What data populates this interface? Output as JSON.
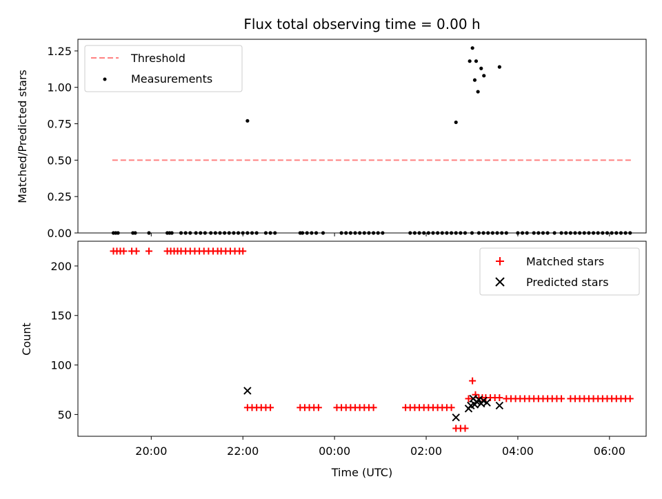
{
  "chart_data": [
    {
      "type": "scatter",
      "panel": "top",
      "title": "Flux total observing time = 0.00 h",
      "ylabel": "Matched/Predicted stars",
      "ylim": [
        0.0,
        1.33
      ],
      "xlim": [
        -3.2,
        21.6
      ],
      "yticks": [
        0.0,
        0.25,
        0.5,
        0.75,
        1.0,
        1.25
      ],
      "ytick_labels": [
        "0.00",
        "0.25",
        "0.50",
        "0.75",
        "1.00",
        "1.25"
      ],
      "xticks": [
        0,
        4,
        8,
        12,
        16,
        20
      ],
      "legend_position": "top-left",
      "threshold": {
        "name": "Threshold",
        "color": "#ff8080",
        "y": 0.5,
        "x": [
          -1.7,
          20.95
        ]
      },
      "measurements": {
        "name": "Measurements",
        "color": "#000000",
        "x": [
          -1.65,
          -1.55,
          -1.45,
          -0.8,
          -0.7,
          -0.1,
          0.7,
          0.8,
          0.9,
          1.3,
          1.5,
          1.7,
          1.95,
          2.15,
          2.35,
          2.6,
          2.8,
          3.0,
          3.2,
          3.4,
          3.6,
          3.8,
          4.0,
          4.2,
          4.4,
          4.6,
          5.0,
          5.2,
          5.4,
          6.5,
          6.6,
          6.8,
          7.0,
          7.2,
          7.5,
          8.3,
          8.5,
          8.7,
          8.9,
          9.1,
          9.3,
          9.5,
          9.7,
          9.9,
          10.1,
          11.3,
          11.5,
          11.7,
          11.9,
          12.1,
          12.3,
          12.5,
          12.7,
          12.9,
          13.1,
          13.3,
          13.5,
          13.7,
          14.0,
          14.3,
          14.5,
          14.7,
          14.9,
          15.1,
          15.3,
          15.5,
          16.0,
          16.2,
          16.4,
          16.7,
          16.9,
          17.1,
          17.3,
          17.6,
          17.9,
          18.1,
          18.3,
          18.5,
          18.7,
          18.9,
          19.1,
          19.3,
          19.5,
          19.7,
          19.9,
          20.1,
          20.3,
          20.5,
          20.7,
          20.9,
          4.2,
          13.3,
          13.9,
          14.12,
          14.02,
          14.18,
          14.26,
          14.4,
          14.52,
          15.2
        ],
        "y": [
          0,
          0,
          0,
          0,
          0,
          0,
          0,
          0,
          0,
          0,
          0,
          0,
          0,
          0,
          0,
          0,
          0,
          0,
          0,
          0,
          0,
          0,
          0,
          0,
          0,
          0,
          0,
          0,
          0,
          0,
          0,
          0,
          0,
          0,
          0,
          0,
          0,
          0,
          0,
          0,
          0,
          0,
          0,
          0,
          0,
          0,
          0,
          0,
          0,
          0,
          0,
          0,
          0,
          0,
          0,
          0,
          0,
          0,
          0,
          0,
          0,
          0,
          0,
          0,
          0,
          0,
          0,
          0,
          0,
          0,
          0,
          0,
          0,
          0,
          0,
          0,
          0,
          0,
          0,
          0,
          0,
          0,
          0,
          0,
          0,
          0,
          0,
          0,
          0,
          0,
          0.77,
          0.76,
          1.18,
          1.05,
          1.27,
          1.18,
          0.97,
          1.13,
          1.08,
          1.14
        ]
      }
    },
    {
      "type": "scatter",
      "panel": "bottom",
      "xlabel": "Time (UTC)",
      "ylabel": "Count",
      "ylim": [
        28,
        225
      ],
      "xlim": [
        -3.2,
        21.6
      ],
      "yticks": [
        50,
        100,
        150,
        200
      ],
      "ytick_labels": [
        "50",
        "100",
        "150",
        "200"
      ],
      "xticks": [
        0,
        4,
        8,
        12,
        16,
        20
      ],
      "xtick_labels": [
        "20:00",
        "22:00",
        "00:00",
        "02:00",
        "04:00",
        "06:00"
      ],
      "legend_position": "top-right",
      "matched": {
        "name": "Matched stars",
        "color": "#ff0000",
        "points": [
          [
            -1.65,
            215
          ],
          [
            -1.5,
            215
          ],
          [
            -1.35,
            215
          ],
          [
            -1.2,
            215
          ],
          [
            -0.85,
            215
          ],
          [
            -0.65,
            215
          ],
          [
            -0.1,
            215
          ],
          [
            0.7,
            215
          ],
          [
            0.85,
            215
          ],
          [
            1.0,
            215
          ],
          [
            1.15,
            215
          ],
          [
            1.3,
            215
          ],
          [
            1.5,
            215
          ],
          [
            1.7,
            215
          ],
          [
            1.9,
            215
          ],
          [
            2.1,
            215
          ],
          [
            2.3,
            215
          ],
          [
            2.5,
            215
          ],
          [
            2.7,
            215
          ],
          [
            2.9,
            215
          ],
          [
            3.05,
            215
          ],
          [
            3.25,
            215
          ],
          [
            3.45,
            215
          ],
          [
            3.65,
            215
          ],
          [
            3.85,
            215
          ],
          [
            4.0,
            215
          ],
          [
            4.2,
            57
          ],
          [
            4.4,
            57
          ],
          [
            4.6,
            57
          ],
          [
            4.8,
            57
          ],
          [
            5.0,
            57
          ],
          [
            5.2,
            57
          ],
          [
            6.5,
            57
          ],
          [
            6.7,
            57
          ],
          [
            6.9,
            57
          ],
          [
            7.1,
            57
          ],
          [
            7.3,
            57
          ],
          [
            8.1,
            57
          ],
          [
            8.3,
            57
          ],
          [
            8.5,
            57
          ],
          [
            8.7,
            57
          ],
          [
            8.9,
            57
          ],
          [
            9.1,
            57
          ],
          [
            9.3,
            57
          ],
          [
            9.5,
            57
          ],
          [
            9.7,
            57
          ],
          [
            11.1,
            57
          ],
          [
            11.3,
            57
          ],
          [
            11.5,
            57
          ],
          [
            11.7,
            57
          ],
          [
            11.9,
            57
          ],
          [
            12.1,
            57
          ],
          [
            12.3,
            57
          ],
          [
            12.5,
            57
          ],
          [
            12.7,
            57
          ],
          [
            12.9,
            57
          ],
          [
            13.1,
            57
          ],
          [
            13.3,
            36
          ],
          [
            13.5,
            36
          ],
          [
            13.7,
            36
          ],
          [
            13.85,
            66
          ],
          [
            14.02,
            84
          ],
          [
            14.15,
            70
          ],
          [
            14.3,
            67
          ],
          [
            14.45,
            67
          ],
          [
            14.6,
            67
          ],
          [
            14.8,
            67
          ],
          [
            15.0,
            67
          ],
          [
            15.2,
            67
          ],
          [
            15.5,
            66
          ],
          [
            15.7,
            66
          ],
          [
            15.9,
            66
          ],
          [
            16.1,
            66
          ],
          [
            16.3,
            66
          ],
          [
            16.5,
            66
          ],
          [
            16.7,
            66
          ],
          [
            16.9,
            66
          ],
          [
            17.1,
            66
          ],
          [
            17.3,
            66
          ],
          [
            17.5,
            66
          ],
          [
            17.7,
            66
          ],
          [
            17.9,
            66
          ],
          [
            18.3,
            66
          ],
          [
            18.5,
            66
          ],
          [
            18.7,
            66
          ],
          [
            18.9,
            66
          ],
          [
            19.1,
            66
          ],
          [
            19.3,
            66
          ],
          [
            19.5,
            66
          ],
          [
            19.7,
            66
          ],
          [
            19.9,
            66
          ],
          [
            20.1,
            66
          ],
          [
            20.3,
            66
          ],
          [
            20.5,
            66
          ],
          [
            20.7,
            66
          ],
          [
            20.9,
            66
          ]
        ]
      },
      "predicted": {
        "name": "Predicted stars",
        "color": "#000000",
        "points": [
          [
            4.2,
            74
          ],
          [
            13.3,
            47
          ],
          [
            13.85,
            56
          ],
          [
            13.95,
            59
          ],
          [
            14.05,
            66
          ],
          [
            14.12,
            60
          ],
          [
            14.2,
            63
          ],
          [
            14.3,
            65
          ],
          [
            14.4,
            61
          ],
          [
            14.5,
            64
          ],
          [
            14.65,
            62
          ],
          [
            15.2,
            59
          ]
        ]
      }
    }
  ]
}
